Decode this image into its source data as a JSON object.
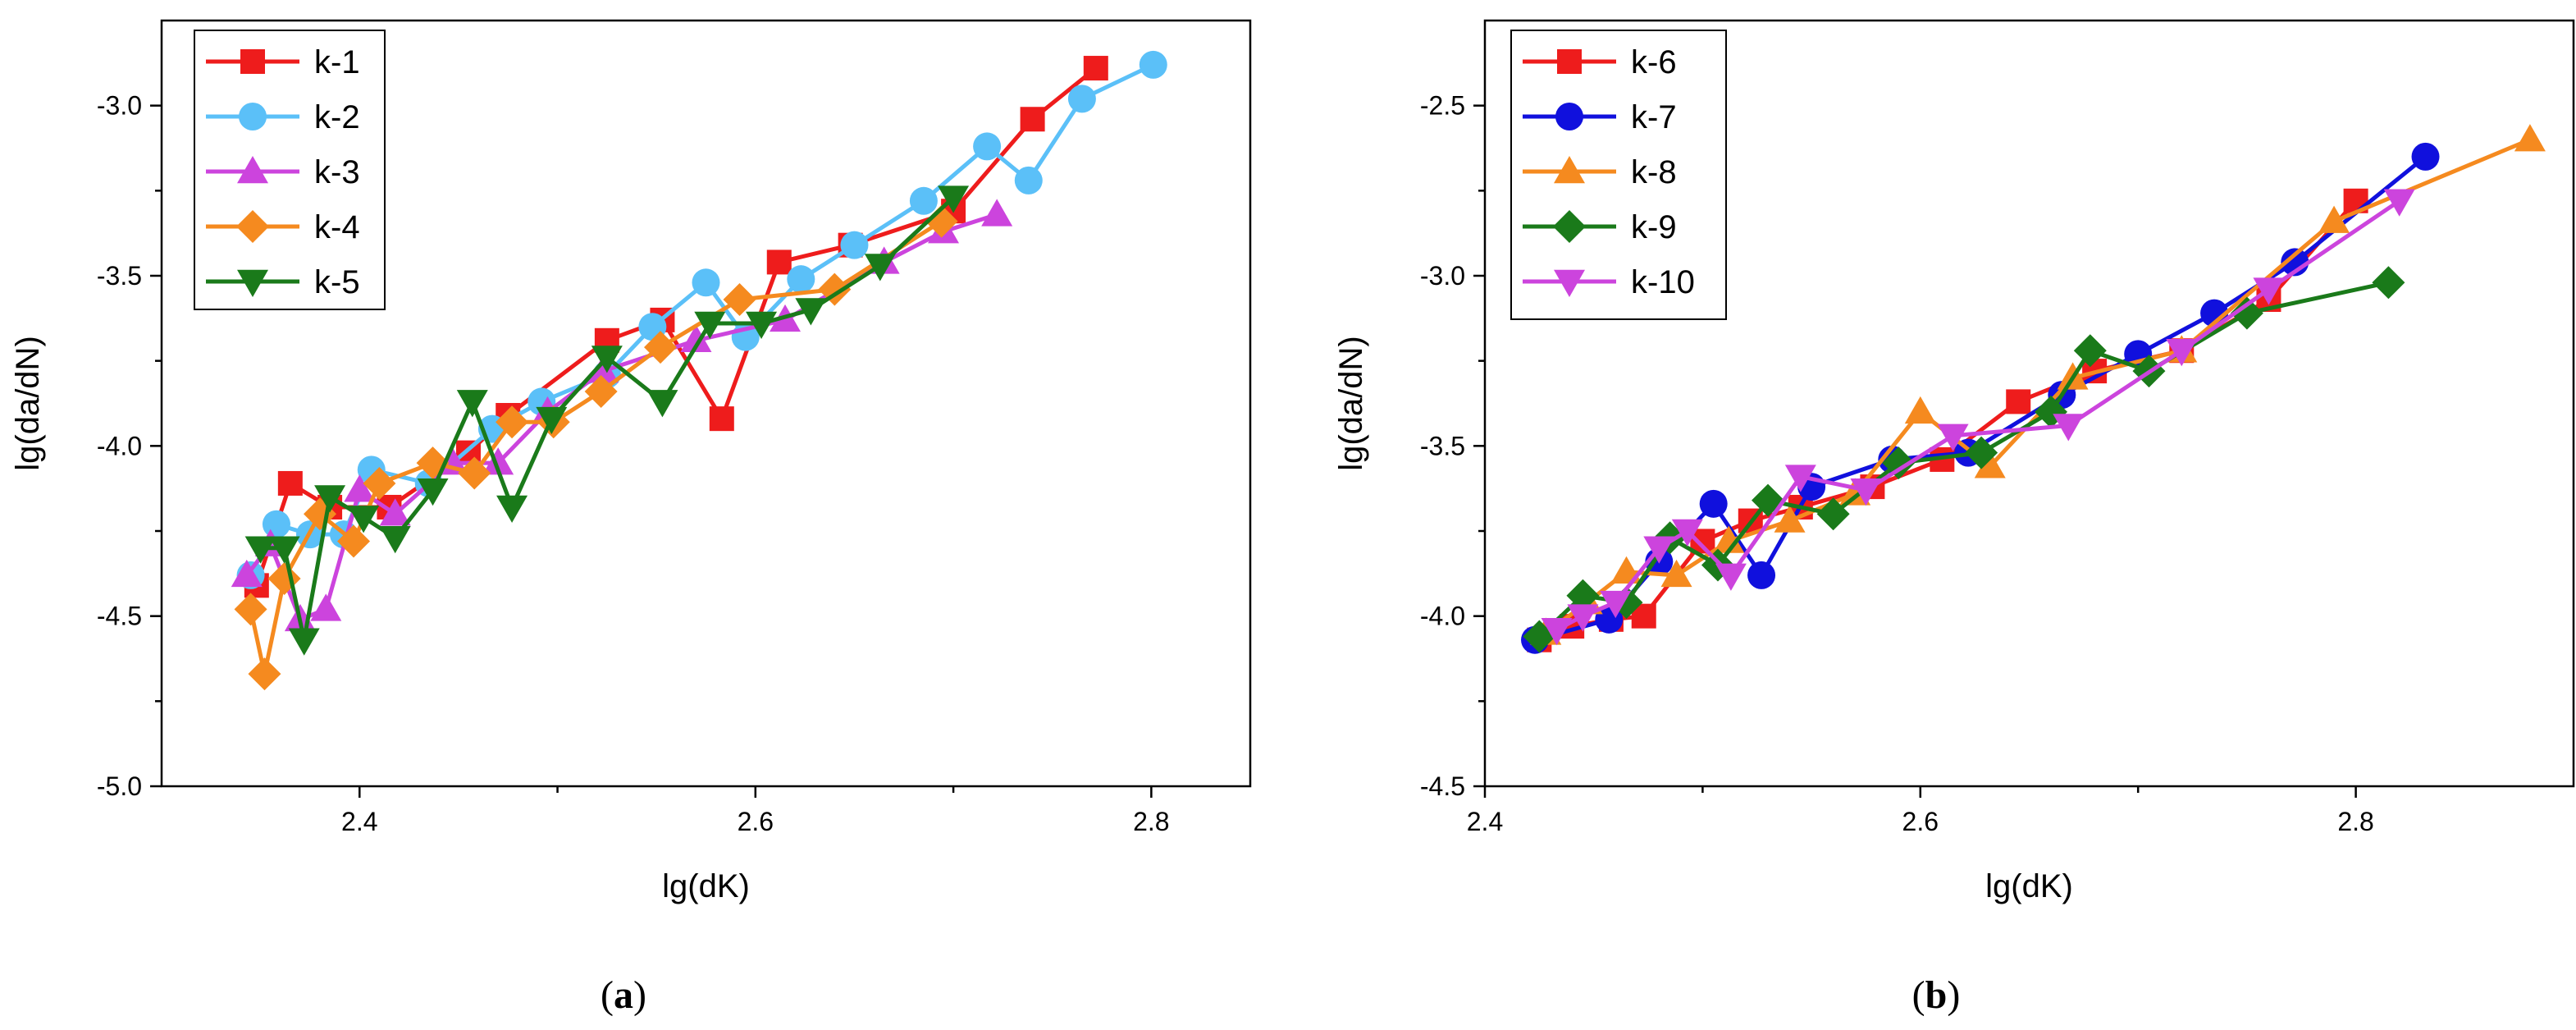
{
  "chart_data": [
    {
      "panel": "a",
      "caption": "a",
      "type": "line",
      "xlabel": "lg(dK)",
      "ylabel": "lg(da/dN)",
      "xlim": [
        2.3,
        2.85
      ],
      "ylim": [
        -5.0,
        -2.75
      ],
      "xticks": [
        2.4,
        2.6,
        2.8
      ],
      "xtick_labels": [
        "2.4",
        "2.6",
        "2.8"
      ],
      "yticks": [
        -5.0,
        -4.5,
        -4.0,
        -3.5,
        -3.0
      ],
      "ytick_labels": [
        "-5.0",
        "-4.5",
        "-4.0",
        "-3.5",
        "-3.0"
      ],
      "legend_position": "top-left",
      "series": [
        {
          "name": "k-1",
          "color": "#ee1c1c",
          "marker": "square",
          "x": [
            2.348,
            2.365,
            2.385,
            2.415,
            2.455,
            2.475,
            2.525,
            2.553,
            2.583,
            2.612,
            2.648,
            2.7,
            2.74,
            2.772
          ],
          "y": [
            -4.41,
            -4.11,
            -4.18,
            -4.18,
            -4.02,
            -3.91,
            -3.69,
            -3.63,
            -3.92,
            -3.46,
            -3.41,
            -3.31,
            -3.04,
            -2.89
          ]
        },
        {
          "name": "k-2",
          "color": "#5bc0f8",
          "marker": "circle",
          "x": [
            2.345,
            2.358,
            2.375,
            2.392,
            2.406,
            2.435,
            2.467,
            2.492,
            2.525,
            2.548,
            2.575,
            2.595,
            2.623,
            2.65,
            2.685,
            2.717,
            2.738,
            2.765,
            2.801
          ],
          "y": [
            -4.38,
            -4.23,
            -4.26,
            -4.26,
            -4.07,
            -4.11,
            -3.95,
            -3.87,
            -3.79,
            -3.65,
            -3.52,
            -3.68,
            -3.51,
            -3.41,
            -3.28,
            -3.12,
            -3.22,
            -2.98,
            -2.88
          ]
        },
        {
          "name": "k-3",
          "color": "#cc44dd",
          "marker": "triangle-up",
          "x": [
            2.343,
            2.355,
            2.37,
            2.383,
            2.4,
            2.418,
            2.447,
            2.47,
            2.495,
            2.523,
            2.57,
            2.615,
            2.665,
            2.695,
            2.722
          ],
          "y": [
            -4.38,
            -4.29,
            -4.51,
            -4.48,
            -4.13,
            -4.2,
            -4.05,
            -4.05,
            -3.9,
            -3.78,
            -3.69,
            -3.63,
            -3.46,
            -3.37,
            -3.32
          ]
        },
        {
          "name": "k-4",
          "color": "#f58a1f",
          "marker": "diamond",
          "x": [
            2.345,
            2.352,
            2.362,
            2.38,
            2.397,
            2.41,
            2.437,
            2.458,
            2.477,
            2.498,
            2.522,
            2.552,
            2.592,
            2.64,
            2.694
          ],
          "y": [
            -4.48,
            -4.67,
            -4.39,
            -4.2,
            -4.28,
            -4.11,
            -4.05,
            -4.08,
            -3.93,
            -3.93,
            -3.84,
            -3.71,
            -3.57,
            -3.54,
            -3.34
          ]
        },
        {
          "name": "k-5",
          "color": "#1a7a1a",
          "marker": "triangle-down",
          "x": [
            2.35,
            2.362,
            2.372,
            2.385,
            2.402,
            2.418,
            2.437,
            2.457,
            2.477,
            2.497,
            2.525,
            2.553,
            2.577,
            2.603,
            2.628,
            2.663,
            2.7
          ],
          "y": [
            -4.3,
            -4.3,
            -4.57,
            -4.15,
            -4.21,
            -4.27,
            -4.13,
            -3.87,
            -4.18,
            -3.92,
            -3.74,
            -3.87,
            -3.64,
            -3.64,
            -3.6,
            -3.47,
            -3.27
          ]
        }
      ]
    },
    {
      "panel": "b",
      "caption": "b",
      "type": "line",
      "xlabel": "lg(dK)",
      "ylabel": "lg(da/dN)",
      "xlim": [
        2.4,
        2.9
      ],
      "ylim": [
        -4.5,
        -2.25
      ],
      "xticks": [
        2.4,
        2.6,
        2.8
      ],
      "xtick_labels": [
        "2.4",
        "2.6",
        "2.8"
      ],
      "yticks": [
        -4.5,
        -4.0,
        -3.5,
        -3.0,
        -2.5
      ],
      "ytick_labels": [
        "-4.5",
        "-4.0",
        "-3.5",
        "-3.0",
        "-2.5"
      ],
      "legend_position": "top-left",
      "series": [
        {
          "name": "k-6",
          "color": "#ee1c1c",
          "marker": "square",
          "x": [
            2.425,
            2.44,
            2.458,
            2.473,
            2.5,
            2.522,
            2.545,
            2.578,
            2.61,
            2.645,
            2.68,
            2.72,
            2.76,
            2.8
          ],
          "y": [
            -4.07,
            -4.03,
            -4.01,
            -4.0,
            -3.78,
            -3.72,
            -3.68,
            -3.62,
            -3.54,
            -3.37,
            -3.28,
            -3.22,
            -3.07,
            -2.78
          ]
        },
        {
          "name": "k-7",
          "color": "#1010dd",
          "marker": "circle",
          "x": [
            2.423,
            2.457,
            2.48,
            2.505,
            2.527,
            2.55,
            2.587,
            2.622,
            2.665,
            2.7,
            2.735,
            2.772,
            2.832
          ],
          "y": [
            -4.07,
            -4.01,
            -3.84,
            -3.67,
            -3.88,
            -3.62,
            -3.54,
            -3.52,
            -3.35,
            -3.23,
            -3.11,
            -2.96,
            -2.65
          ]
        },
        {
          "name": "k-8",
          "color": "#f58a1f",
          "marker": "triangle-up",
          "x": [
            2.428,
            2.447,
            2.465,
            2.488,
            2.512,
            2.54,
            2.57,
            2.6,
            2.632,
            2.67,
            2.72,
            2.79,
            2.88
          ],
          "y": [
            -4.05,
            -3.96,
            -3.87,
            -3.88,
            -3.78,
            -3.72,
            -3.64,
            -3.4,
            -3.56,
            -3.3,
            -3.22,
            -2.84,
            -2.6
          ]
        },
        {
          "name": "k-9",
          "color": "#1a7a1a",
          "marker": "diamond",
          "x": [
            2.425,
            2.445,
            2.465,
            2.485,
            2.507,
            2.53,
            2.56,
            2.59,
            2.628,
            2.66,
            2.678,
            2.705,
            2.75,
            2.815
          ],
          "y": [
            -4.06,
            -3.94,
            -3.96,
            -3.77,
            -3.85,
            -3.66,
            -3.7,
            -3.55,
            -3.52,
            -3.4,
            -3.22,
            -3.28,
            -3.11,
            -3.02
          ]
        },
        {
          "name": "k-10",
          "color": "#cc44dd",
          "marker": "triangle-down",
          "x": [
            2.433,
            2.445,
            2.46,
            2.48,
            2.493,
            2.513,
            2.545,
            2.575,
            2.615,
            2.668,
            2.72,
            2.76,
            2.82
          ],
          "y": [
            -4.04,
            -4.0,
            -3.96,
            -3.8,
            -3.75,
            -3.88,
            -3.59,
            -3.63,
            -3.47,
            -3.44,
            -3.22,
            -3.04,
            -2.78
          ]
        }
      ]
    }
  ]
}
